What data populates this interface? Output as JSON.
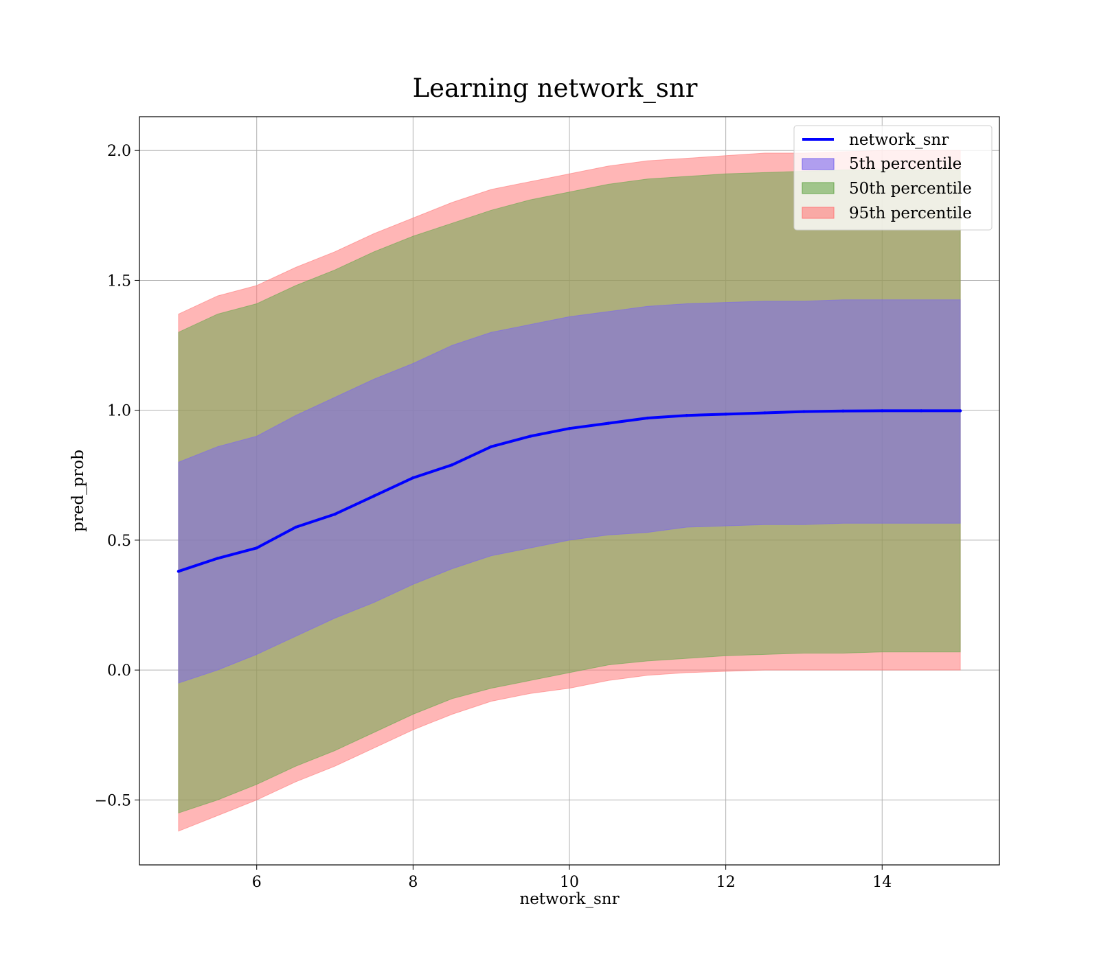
{
  "chart_data": {
    "type": "area",
    "title": "Learning network_snr",
    "xlabel": "network_snr",
    "ylabel": "pred_prob",
    "xlim": [
      4.5,
      15.5
    ],
    "ylim": [
      -0.75,
      2.13
    ],
    "grid": true,
    "legend_position": "top-right",
    "x_ticks": [
      6,
      8,
      10,
      12,
      14
    ],
    "x_tick_labels": [
      "6",
      "8",
      "10",
      "12",
      "14"
    ],
    "y_ticks": [
      -0.5,
      0.0,
      0.5,
      1.0,
      1.5,
      2.0
    ],
    "y_tick_labels": [
      "−0.5",
      "0.0",
      "0.5",
      "1.0",
      "1.5",
      "2.0"
    ],
    "x": [
      5,
      5.5,
      6,
      6.5,
      7,
      7.5,
      8,
      8.5,
      9,
      9.5,
      10,
      10.5,
      11,
      11.5,
      12,
      12.5,
      13,
      13.5,
      14,
      14.5,
      15
    ],
    "series": [
      {
        "name": "network_snr",
        "kind": "line",
        "color": "#0000ff",
        "values": [
          0.38,
          0.43,
          0.47,
          0.55,
          0.6,
          0.67,
          0.74,
          0.79,
          0.86,
          0.9,
          0.93,
          0.95,
          0.97,
          0.98,
          0.985,
          0.99,
          0.995,
          0.997,
          0.998,
          0.998,
          0.998
        ]
      },
      {
        "name": "5th percentile",
        "kind": "band",
        "color": "#7b68ee",
        "lower": [
          -0.05,
          0.0,
          0.06,
          0.13,
          0.2,
          0.26,
          0.33,
          0.39,
          0.44,
          0.47,
          0.5,
          0.52,
          0.53,
          0.55,
          0.555,
          0.56,
          0.56,
          0.565,
          0.565,
          0.565,
          0.565
        ],
        "upper": [
          0.8,
          0.86,
          0.9,
          0.98,
          1.05,
          1.12,
          1.18,
          1.25,
          1.3,
          1.33,
          1.36,
          1.38,
          1.4,
          1.41,
          1.415,
          1.42,
          1.42,
          1.425,
          1.425,
          1.425,
          1.425
        ]
      },
      {
        "name": "50th percentile",
        "kind": "band",
        "color": "#6aa84f",
        "lower": [
          -0.55,
          -0.5,
          -0.44,
          -0.37,
          -0.31,
          -0.24,
          -0.17,
          -0.11,
          -0.07,
          -0.04,
          -0.01,
          0.02,
          0.035,
          0.045,
          0.055,
          0.06,
          0.065,
          0.065,
          0.07,
          0.07,
          0.07
        ],
        "upper": [
          1.3,
          1.37,
          1.41,
          1.48,
          1.54,
          1.61,
          1.67,
          1.72,
          1.77,
          1.81,
          1.84,
          1.87,
          1.89,
          1.9,
          1.91,
          1.915,
          1.92,
          1.925,
          1.925,
          1.925,
          1.925
        ]
      },
      {
        "name": "95th percentile",
        "kind": "band",
        "color": "#ff7a7a",
        "lower": [
          -0.62,
          -0.56,
          -0.5,
          -0.43,
          -0.37,
          -0.3,
          -0.23,
          -0.17,
          -0.12,
          -0.09,
          -0.07,
          -0.04,
          -0.02,
          -0.01,
          -0.005,
          0.0,
          0.0,
          0.0,
          0.0,
          0.0,
          0.0
        ],
        "upper": [
          1.37,
          1.44,
          1.48,
          1.55,
          1.61,
          1.68,
          1.74,
          1.8,
          1.85,
          1.88,
          1.91,
          1.94,
          1.96,
          1.97,
          1.98,
          1.99,
          1.99,
          1.995,
          2.0,
          2.0,
          2.0
        ]
      }
    ]
  }
}
